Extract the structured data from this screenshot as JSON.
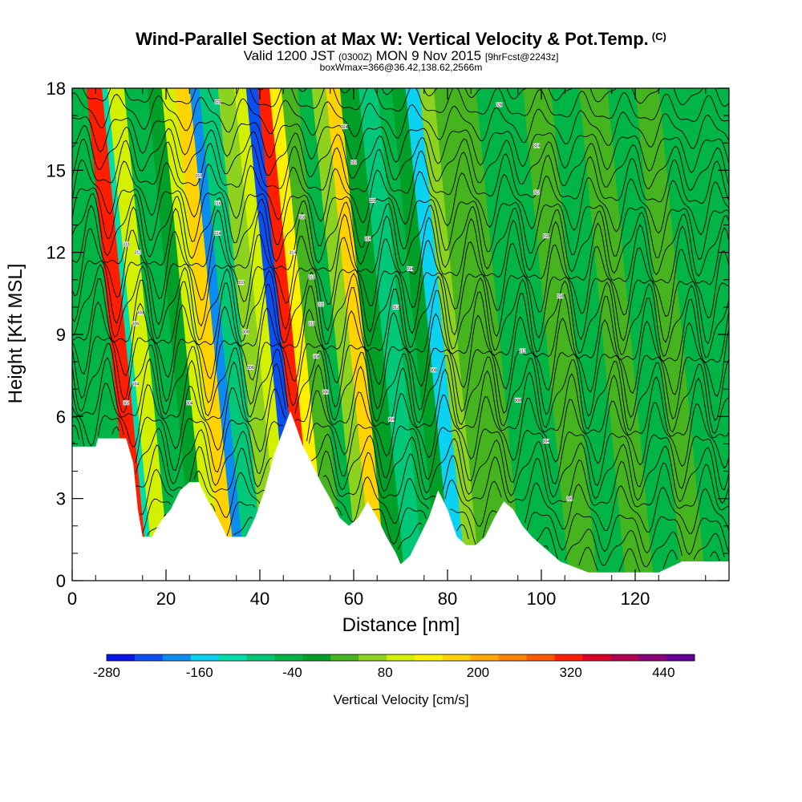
{
  "header": {
    "title": "Wind-Parallel Section at Max W: Vertical Velocity & Pot.Temp.",
    "title_mark": "(C)",
    "subtitle_a": "Valid 1200 JST",
    "subtitle_b": "(0300Z)",
    "subtitle_c": "MON 9 Nov 2015",
    "subtitle_d": "[9hrFcst@2243z]",
    "subtitle_line2": "boxWmax=366@36.42,138.62,2566m"
  },
  "chart_data": {
    "type": "heatmap",
    "xlabel": "Distance [nm]",
    "ylabel": "Height [Kft MSL]",
    "xlim": [
      0,
      140
    ],
    "ylim": [
      0,
      18
    ],
    "x_ticks": [
      "0",
      "20",
      "40",
      "60",
      "80",
      "100",
      "120"
    ],
    "y_ticks": [
      "0",
      "3",
      "6",
      "9",
      "12",
      "15",
      "18"
    ],
    "colorbar": {
      "label": "Vertical Velocity [cm/s]",
      "min": -280,
      "max": 480,
      "step": 40,
      "tick_labels": [
        "-280",
        "-160",
        "-40",
        "80",
        "200",
        "320",
        "440"
      ],
      "colors": [
        "#0a14e6",
        "#0a50f0",
        "#0a8cf0",
        "#0ad2f0",
        "#00dcaa",
        "#00c878",
        "#00b446",
        "#00a028",
        "#46b41e",
        "#8cd21e",
        "#d2f000",
        "#fff000",
        "#ffd200",
        "#ffaa00",
        "#ff8200",
        "#ff5a00",
        "#ff1e00",
        "#dc0028",
        "#b40050",
        "#8c0078",
        "#640096"
      ]
    },
    "vertical_velocity_bands": [
      {
        "x_bottom": 13.0,
        "v": 360
      },
      {
        "x_bottom": 16.3,
        "v": -110
      },
      {
        "x_bottom": 17.5,
        "v": 140
      },
      {
        "x_bottom": 21.0,
        "v": -30
      },
      {
        "x_bottom": 26.0,
        "v": 20
      },
      {
        "x_bottom": 29.0,
        "v": 120
      },
      {
        "x_bottom": 32.0,
        "v": 200
      },
      {
        "x_bottom": 35.0,
        "v": -200
      },
      {
        "x_bottom": 37.0,
        "v": -60
      },
      {
        "x_bottom": 41.0,
        "v": 90
      },
      {
        "x_bottom": 44.5,
        "v": 120
      },
      {
        "x_bottom": 47.0,
        "v": -240
      },
      {
        "x_bottom": 49.5,
        "v": 366
      },
      {
        "x_bottom": 52.0,
        "v": 180
      },
      {
        "x_bottom": 54.5,
        "v": 60
      },
      {
        "x_bottom": 58.0,
        "v": -40
      },
      {
        "x_bottom": 61.0,
        "v": 110
      },
      {
        "x_bottom": 64.0,
        "v": 200
      },
      {
        "x_bottom": 67.0,
        "v": 30
      },
      {
        "x_bottom": 71.0,
        "v": -50
      },
      {
        "x_bottom": 75.0,
        "v": -20
      },
      {
        "x_bottom": 78.0,
        "v": 10
      },
      {
        "x_bottom": 81.0,
        "v": -150
      },
      {
        "x_bottom": 84.0,
        "v": 100
      },
      {
        "x_bottom": 87.0,
        "v": 40
      },
      {
        "x_bottom": 92.0,
        "v": 60
      },
      {
        "x_bottom": 96.0,
        "v": -30
      },
      {
        "x_bottom": 101.0,
        "v": -40
      },
      {
        "x_bottom": 106.0,
        "v": 50
      },
      {
        "x_bottom": 112.0,
        "v": -20
      },
      {
        "x_bottom": 118.0,
        "v": 40
      },
      {
        "x_bottom": 124.0,
        "v": -30
      },
      {
        "x_bottom": 130.0,
        "v": 50
      },
      {
        "x_bottom": 135.0,
        "v": -20
      }
    ],
    "terrain_kft": [
      {
        "x": 0,
        "h": 4.9
      },
      {
        "x": 5,
        "h": 4.9
      },
      {
        "x": 5.5,
        "h": 5.2
      },
      {
        "x": 11.5,
        "h": 5.2
      },
      {
        "x": 13,
        "h": 4.3
      },
      {
        "x": 14,
        "h": 2.6
      },
      {
        "x": 15,
        "h": 1.6
      },
      {
        "x": 17,
        "h": 1.6
      },
      {
        "x": 19,
        "h": 2.2
      },
      {
        "x": 21,
        "h": 2.6
      },
      {
        "x": 23,
        "h": 3.3
      },
      {
        "x": 25,
        "h": 3.6
      },
      {
        "x": 27,
        "h": 3.6
      },
      {
        "x": 29,
        "h": 2.9
      },
      {
        "x": 31,
        "h": 2.3
      },
      {
        "x": 33,
        "h": 1.6
      },
      {
        "x": 37,
        "h": 1.6
      },
      {
        "x": 39,
        "h": 2.3
      },
      {
        "x": 41,
        "h": 3.3
      },
      {
        "x": 43,
        "h": 4.6
      },
      {
        "x": 45,
        "h": 5.5
      },
      {
        "x": 46.5,
        "h": 6.2
      },
      {
        "x": 48,
        "h": 5.5
      },
      {
        "x": 49,
        "h": 5.0
      },
      {
        "x": 51,
        "h": 4.3
      },
      {
        "x": 53,
        "h": 3.6
      },
      {
        "x": 55,
        "h": 3.0
      },
      {
        "x": 57,
        "h": 2.3
      },
      {
        "x": 59,
        "h": 2.0
      },
      {
        "x": 61,
        "h": 2.3
      },
      {
        "x": 63,
        "h": 2.9
      },
      {
        "x": 65,
        "h": 2.3
      },
      {
        "x": 67,
        "h": 1.6
      },
      {
        "x": 69,
        "h": 1.0
      },
      {
        "x": 70,
        "h": 0.6
      },
      {
        "x": 72,
        "h": 0.9
      },
      {
        "x": 74,
        "h": 1.6
      },
      {
        "x": 76,
        "h": 2.3
      },
      {
        "x": 78,
        "h": 3.3
      },
      {
        "x": 80,
        "h": 2.6
      },
      {
        "x": 82,
        "h": 1.6
      },
      {
        "x": 84,
        "h": 1.3
      },
      {
        "x": 86,
        "h": 1.3
      },
      {
        "x": 88,
        "h": 1.6
      },
      {
        "x": 90,
        "h": 2.3
      },
      {
        "x": 92,
        "h": 2.9
      },
      {
        "x": 94,
        "h": 2.6
      },
      {
        "x": 96,
        "h": 2.0
      },
      {
        "x": 98,
        "h": 1.6
      },
      {
        "x": 100,
        "h": 1.3
      },
      {
        "x": 102,
        "h": 1.0
      },
      {
        "x": 104,
        "h": 0.7
      },
      {
        "x": 110,
        "h": 0.3
      },
      {
        "x": 125,
        "h": 0.3
      },
      {
        "x": 130,
        "h": 0.7
      },
      {
        "x": 140,
        "h": 0.7
      }
    ],
    "theta_contour_count": 26,
    "theta_labels": [
      {
        "x": 11.5,
        "y": 12.3,
        "text": "310"
      },
      {
        "x": 11.5,
        "y": 6.5,
        "text": "302"
      },
      {
        "x": 14,
        "y": 12.0,
        "text": "312"
      },
      {
        "x": 13.5,
        "y": 9.4,
        "text": "306"
      },
      {
        "x": 14.5,
        "y": 9.8,
        "text": "308"
      },
      {
        "x": 13.5,
        "y": 7.2,
        "text": "304"
      },
      {
        "x": 25,
        "y": 6.5,
        "text": "304"
      },
      {
        "x": 27,
        "y": 14.8,
        "text": "318"
      },
      {
        "x": 31,
        "y": 13.8,
        "text": "316"
      },
      {
        "x": 31,
        "y": 12.7,
        "text": "314"
      },
      {
        "x": 31,
        "y": 17.5,
        "text": "322"
      },
      {
        "x": 36,
        "y": 10.9,
        "text": "310"
      },
      {
        "x": 37,
        "y": 9.1,
        "text": "308"
      },
      {
        "x": 38,
        "y": 7.8,
        "text": "306"
      },
      {
        "x": 49,
        "y": 13.3,
        "text": "318"
      },
      {
        "x": 47,
        "y": 12.0,
        "text": "314"
      },
      {
        "x": 51,
        "y": 11.1,
        "text": "312"
      },
      {
        "x": 51,
        "y": 9.4,
        "text": "310"
      },
      {
        "x": 52,
        "y": 8.2,
        "text": "308"
      },
      {
        "x": 53,
        "y": 10.1,
        "text": "311"
      },
      {
        "x": 54,
        "y": 6.9,
        "text": "306"
      },
      {
        "x": 58,
        "y": 16.6,
        "text": "324"
      },
      {
        "x": 60,
        "y": 15.3,
        "text": "322"
      },
      {
        "x": 64,
        "y": 13.9,
        "text": "320"
      },
      {
        "x": 63,
        "y": 12.5,
        "text": "316"
      },
      {
        "x": 72,
        "y": 11.4,
        "text": "314"
      },
      {
        "x": 69,
        "y": 10.0,
        "text": "312"
      },
      {
        "x": 77,
        "y": 7.7,
        "text": "308"
      },
      {
        "x": 68,
        "y": 5.9,
        "text": "304"
      },
      {
        "x": 91,
        "y": 17.4,
        "text": "326"
      },
      {
        "x": 99,
        "y": 15.9,
        "text": "324"
      },
      {
        "x": 99,
        "y": 14.2,
        "text": "322"
      },
      {
        "x": 101,
        "y": 12.6,
        "text": "318"
      },
      {
        "x": 104,
        "y": 10.4,
        "text": "316"
      },
      {
        "x": 96,
        "y": 8.4,
        "text": "312"
      },
      {
        "x": 95,
        "y": 6.6,
        "text": "308"
      },
      {
        "x": 101,
        "y": 5.1,
        "text": "304"
      },
      {
        "x": 106,
        "y": 3.0,
        "text": "300"
      }
    ]
  }
}
